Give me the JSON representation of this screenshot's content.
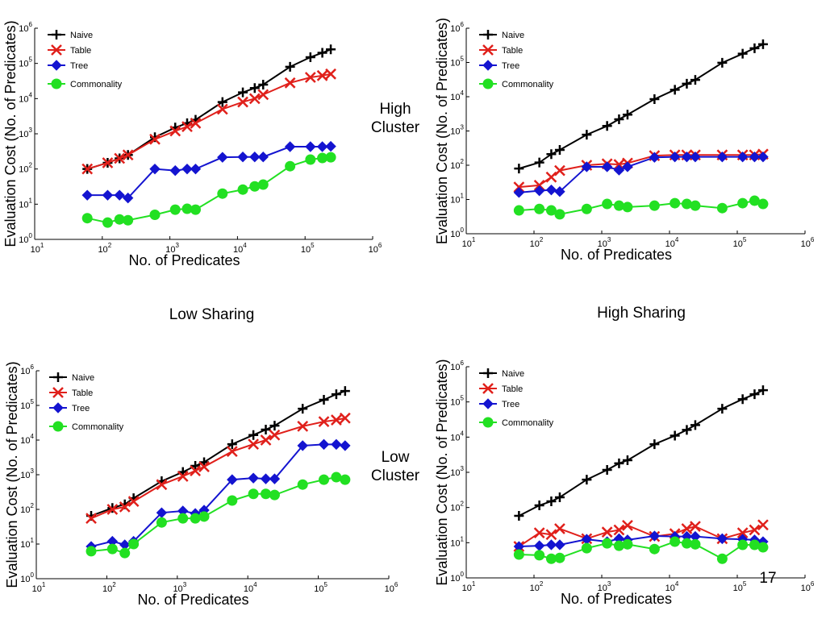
{
  "slide": {
    "labels": [
      "High Cluster",
      "Low Cluster",
      "Low Sharing",
      "High Sharing"
    ],
    "page_number": "17"
  },
  "chart_data": [
    {
      "type": "line",
      "xlabel": "No. of Predicates",
      "ylabel": "Evaluation Cost (No. of Predicates)",
      "xscale": "log",
      "yscale": "log",
      "legend": "upper left",
      "xlim": [
        10,
        1000000
      ],
      "ylim": [
        1,
        1000000
      ],
      "xticks": [
        {
          "value": 10,
          "label": "10",
          "sup": "1"
        },
        {
          "value": 100,
          "label": "10",
          "sup": "2"
        },
        {
          "value": 1000,
          "label": "10",
          "sup": "3"
        },
        {
          "value": 10000,
          "label": "10",
          "sup": "4"
        },
        {
          "value": 100000,
          "label": "10",
          "sup": "5"
        },
        {
          "value": 1000000,
          "label": "10",
          "sup": "6"
        }
      ],
      "yticks": [
        {
          "value": 1,
          "label": "10",
          "sup": "0"
        },
        {
          "value": 10,
          "label": "10",
          "sup": "1"
        },
        {
          "value": 100,
          "label": "10",
          "sup": "2"
        },
        {
          "value": 1000,
          "label": "10",
          "sup": "3"
        },
        {
          "value": 10000,
          "label": "10",
          "sup": "4"
        },
        {
          "value": 100000,
          "label": "10",
          "sup": "5"
        },
        {
          "value": 1000000,
          "label": "10",
          "sup": "6"
        }
      ],
      "x": [
        60,
        120,
        180,
        240,
        600,
        1200,
        1800,
        2400,
        6000,
        12000,
        18000,
        24000,
        60000,
        120000,
        180000,
        240000
      ],
      "series": [
        {
          "name": "Naive",
          "color": "#000000",
          "marker": "plus",
          "values": [
            100,
            150,
            200,
            250,
            800,
            1500,
            2000,
            2500,
            8000,
            15000,
            20000,
            25000,
            80000,
            150000,
            200000,
            250000
          ]
        },
        {
          "name": "Table",
          "color": "#e0201b",
          "marker": "x",
          "values": [
            100,
            150,
            200,
            250,
            700,
            1200,
            1600,
            2000,
            5000,
            8000,
            10000,
            13000,
            28000,
            40000,
            45000,
            50000
          ]
        },
        {
          "name": "Tree",
          "color": "#1414d0",
          "marker": "diamond",
          "values": [
            18,
            18,
            18,
            15,
            100,
            90,
            100,
            100,
            215,
            220,
            220,
            220,
            430,
            430,
            430,
            440
          ]
        },
        {
          "name": "Commonality",
          "color": "#22e022",
          "marker": "circle",
          "values": [
            4,
            3,
            3.7,
            3.5,
            5,
            7,
            7.4,
            7,
            20,
            26,
            32,
            36,
            120,
            185,
            205,
            215
          ]
        }
      ]
    },
    {
      "type": "line",
      "xlabel": "No. of Predicates",
      "ylabel": "Evaluation Cost (No. of Predicates)",
      "xscale": "log",
      "yscale": "log",
      "legend": "upper left",
      "xlim": [
        10,
        1000000
      ],
      "ylim": [
        1,
        1000000
      ],
      "xticks": [
        {
          "value": 10,
          "label": "10",
          "sup": "1"
        },
        {
          "value": 100,
          "label": "10",
          "sup": "2"
        },
        {
          "value": 1000,
          "label": "10",
          "sup": "3"
        },
        {
          "value": 10000,
          "label": "10",
          "sup": "4"
        },
        {
          "value": 100000,
          "label": "10",
          "sup": "5"
        },
        {
          "value": 1000000,
          "label": "10",
          "sup": "6"
        }
      ],
      "yticks": [
        {
          "value": 1,
          "label": "10",
          "sup": "0"
        },
        {
          "value": 10,
          "label": "10",
          "sup": "1"
        },
        {
          "value": 100,
          "label": "10",
          "sup": "2"
        },
        {
          "value": 1000,
          "label": "10",
          "sup": "3"
        },
        {
          "value": 10000,
          "label": "10",
          "sup": "4"
        },
        {
          "value": 100000,
          "label": "10",
          "sup": "5"
        },
        {
          "value": 1000000,
          "label": "10",
          "sup": "6"
        }
      ],
      "x": [
        60,
        120,
        180,
        240,
        600,
        1200,
        1800,
        2400,
        6000,
        12000,
        18000,
        24000,
        60000,
        120000,
        180000,
        240000
      ],
      "series": [
        {
          "name": "Naive",
          "color": "#000000",
          "marker": "plus",
          "values": [
            80,
            120,
            210,
            280,
            780,
            1400,
            2200,
            3000,
            8500,
            16000,
            24000,
            31000,
            98000,
            180000,
            260000,
            340000
          ]
        },
        {
          "name": "Table",
          "color": "#e0201b",
          "marker": "x",
          "values": [
            23,
            26,
            45,
            70,
            100,
            110,
            105,
            115,
            190,
            200,
            200,
            200,
            200,
            200,
            200,
            210
          ]
        },
        {
          "name": "Tree",
          "color": "#1414d0",
          "marker": "diamond",
          "values": [
            16,
            18,
            19,
            17,
            90,
            90,
            72,
            90,
            170,
            175,
            175,
            175,
            175,
            175,
            175,
            175
          ]
        },
        {
          "name": "Commonality",
          "color": "#22e022",
          "marker": "circle",
          "values": [
            4.8,
            5.3,
            4.8,
            3.7,
            5.3,
            7.4,
            6.6,
            6,
            6.6,
            7.8,
            7.4,
            6.6,
            5.6,
            7.8,
            9.2,
            7.4
          ]
        }
      ]
    },
    {
      "type": "line",
      "xlabel": "No. of Predicates",
      "ylabel": "Evaluation Cost (No. of Predicates)",
      "xscale": "log",
      "yscale": "log",
      "legend": "upper left",
      "xlim": [
        10,
        1000000
      ],
      "ylim": [
        1,
        1000000
      ],
      "xticks": [
        {
          "value": 10,
          "label": "10",
          "sup": "1"
        },
        {
          "value": 100,
          "label": "10",
          "sup": "2"
        },
        {
          "value": 1000,
          "label": "10",
          "sup": "3"
        },
        {
          "value": 10000,
          "label": "10",
          "sup": "4"
        },
        {
          "value": 100000,
          "label": "10",
          "sup": "5"
        },
        {
          "value": 1000000,
          "label": "10",
          "sup": "6"
        }
      ],
      "yticks": [
        {
          "value": 1,
          "label": "10",
          "sup": "0"
        },
        {
          "value": 10,
          "label": "10",
          "sup": "1"
        },
        {
          "value": 100,
          "label": "10",
          "sup": "2"
        },
        {
          "value": 1000,
          "label": "10",
          "sup": "3"
        },
        {
          "value": 10000,
          "label": "10",
          "sup": "4"
        },
        {
          "value": 100000,
          "label": "10",
          "sup": "5"
        },
        {
          "value": 1000000,
          "label": "10",
          "sup": "6"
        }
      ],
      "x": [
        60,
        120,
        180,
        240,
        600,
        1200,
        1800,
        2400,
        6000,
        12000,
        18000,
        24000,
        60000,
        120000,
        180000,
        240000
      ],
      "series": [
        {
          "name": "Naive",
          "color": "#000000",
          "marker": "plus",
          "values": [
            65,
            110,
            140,
            210,
            650,
            1200,
            1800,
            2300,
            7600,
            14000,
            20000,
            26000,
            80000,
            145000,
            210000,
            260000
          ]
        },
        {
          "name": "Table",
          "color": "#e0201b",
          "marker": "x",
          "values": [
            55,
            100,
            118,
            170,
            520,
            900,
            1300,
            1700,
            4700,
            7600,
            10000,
            14000,
            25000,
            34000,
            38000,
            43000
          ]
        },
        {
          "name": "Tree",
          "color": "#1414d0",
          "marker": "diamond",
          "values": [
            8.5,
            12,
            9.5,
            12,
            80,
            90,
            76,
            95,
            720,
            800,
            760,
            760,
            6900,
            7500,
            7500,
            6900
          ]
        },
        {
          "name": "Commonality",
          "color": "#22e022",
          "marker": "circle",
          "values": [
            6.2,
            7.2,
            5.5,
            10,
            42,
            55,
            55,
            62,
            180,
            280,
            280,
            260,
            520,
            720,
            850,
            720
          ]
        }
      ]
    },
    {
      "type": "line",
      "xlabel": "No. of Predicates",
      "ylabel": "Evaluation Cost (No. of Predicates)",
      "xscale": "log",
      "yscale": "log",
      "legend": "upper left",
      "xlim": [
        10,
        1000000
      ],
      "ylim": [
        1,
        1000000
      ],
      "xticks": [
        {
          "value": 10,
          "label": "10",
          "sup": "1"
        },
        {
          "value": 100,
          "label": "10",
          "sup": "2"
        },
        {
          "value": 1000,
          "label": "10",
          "sup": "3"
        },
        {
          "value": 10000,
          "label": "10",
          "sup": "4"
        },
        {
          "value": 100000,
          "label": "10",
          "sup": "5"
        },
        {
          "value": 1000000,
          "label": "10",
          "sup": "6"
        }
      ],
      "yticks": [
        {
          "value": 1,
          "label": "10",
          "sup": "0"
        },
        {
          "value": 10,
          "label": "10",
          "sup": "1"
        },
        {
          "value": 100,
          "label": "10",
          "sup": "2"
        },
        {
          "value": 1000,
          "label": "10",
          "sup": "3"
        },
        {
          "value": 10000,
          "label": "10",
          "sup": "4"
        },
        {
          "value": 100000,
          "label": "10",
          "sup": "5"
        },
        {
          "value": 1000000,
          "label": "10",
          "sup": "6"
        }
      ],
      "x": [
        60,
        120,
        180,
        240,
        600,
        1200,
        1800,
        2400,
        6000,
        12000,
        18000,
        24000,
        60000,
        120000,
        180000,
        240000
      ],
      "series": [
        {
          "name": "Naive",
          "color": "#000000",
          "marker": "plus",
          "values": [
            58,
            115,
            150,
            195,
            620,
            1170,
            1800,
            2200,
            6300,
            11000,
            16000,
            22000,
            64000,
            120000,
            165000,
            215000
          ]
        },
        {
          "name": "Table",
          "color": "#e0201b",
          "marker": "x",
          "values": [
            7.8,
            19,
            17,
            25,
            13,
            20,
            23,
            31,
            15,
            18,
            25,
            29,
            13,
            19,
            23,
            32
          ]
        },
        {
          "name": "Tree",
          "color": "#1414d0",
          "marker": "diamond",
          "values": [
            7.8,
            8.2,
            8.7,
            8.7,
            12.5,
            10.7,
            13,
            12,
            15.5,
            15,
            15,
            15,
            13,
            12.5,
            12,
            10.7
          ]
        },
        {
          "name": "Commonality",
          "color": "#22e022",
          "marker": "circle",
          "values": [
            4.6,
            4.4,
            3.5,
            3.7,
            7,
            9.6,
            8.2,
            9,
            6.6,
            10.7,
            9.6,
            9,
            3.5,
            8.7,
            8.7,
            7.4
          ]
        }
      ]
    }
  ]
}
